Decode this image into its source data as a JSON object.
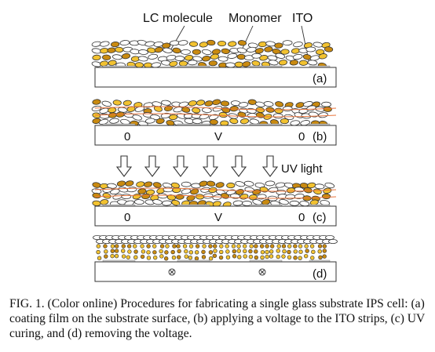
{
  "labels": {
    "lc_molecule": "LC molecule",
    "monomer": "Monomer",
    "ito": "ITO",
    "uv_light": "UV light"
  },
  "panels": [
    {
      "id": "a",
      "tag": "(a)",
      "left_value": "",
      "mid_value": "",
      "right_value": "",
      "state": "coated"
    },
    {
      "id": "b",
      "tag": "(b)",
      "left_value": "0",
      "mid_value": "V",
      "right_value": "0",
      "state": "voltage"
    },
    {
      "id": "c",
      "tag": "(c)",
      "left_value": "0",
      "mid_value": "V",
      "right_value": "0",
      "state": "uv-curing"
    },
    {
      "id": "d",
      "tag": "(d)",
      "left_value": "",
      "mid_value": "",
      "right_value": "",
      "state": "voltage-removed"
    }
  ],
  "caption": {
    "text": "FIG. 1. (Color online) Procedures for fabricating a single glass substrate IPS cell: (a) coating film on the substrate surface, (b) applying a voltage to the ITO strips, (c) UV curing, and (d) removing the voltage."
  },
  "colors": {
    "lc_fill": "#ffffff",
    "monomer_fill": "#f2c230",
    "monomer_dark": "#c98a10",
    "ito": "#cfcfcf",
    "field_line": "#e8743c",
    "outline": "#333333"
  }
}
